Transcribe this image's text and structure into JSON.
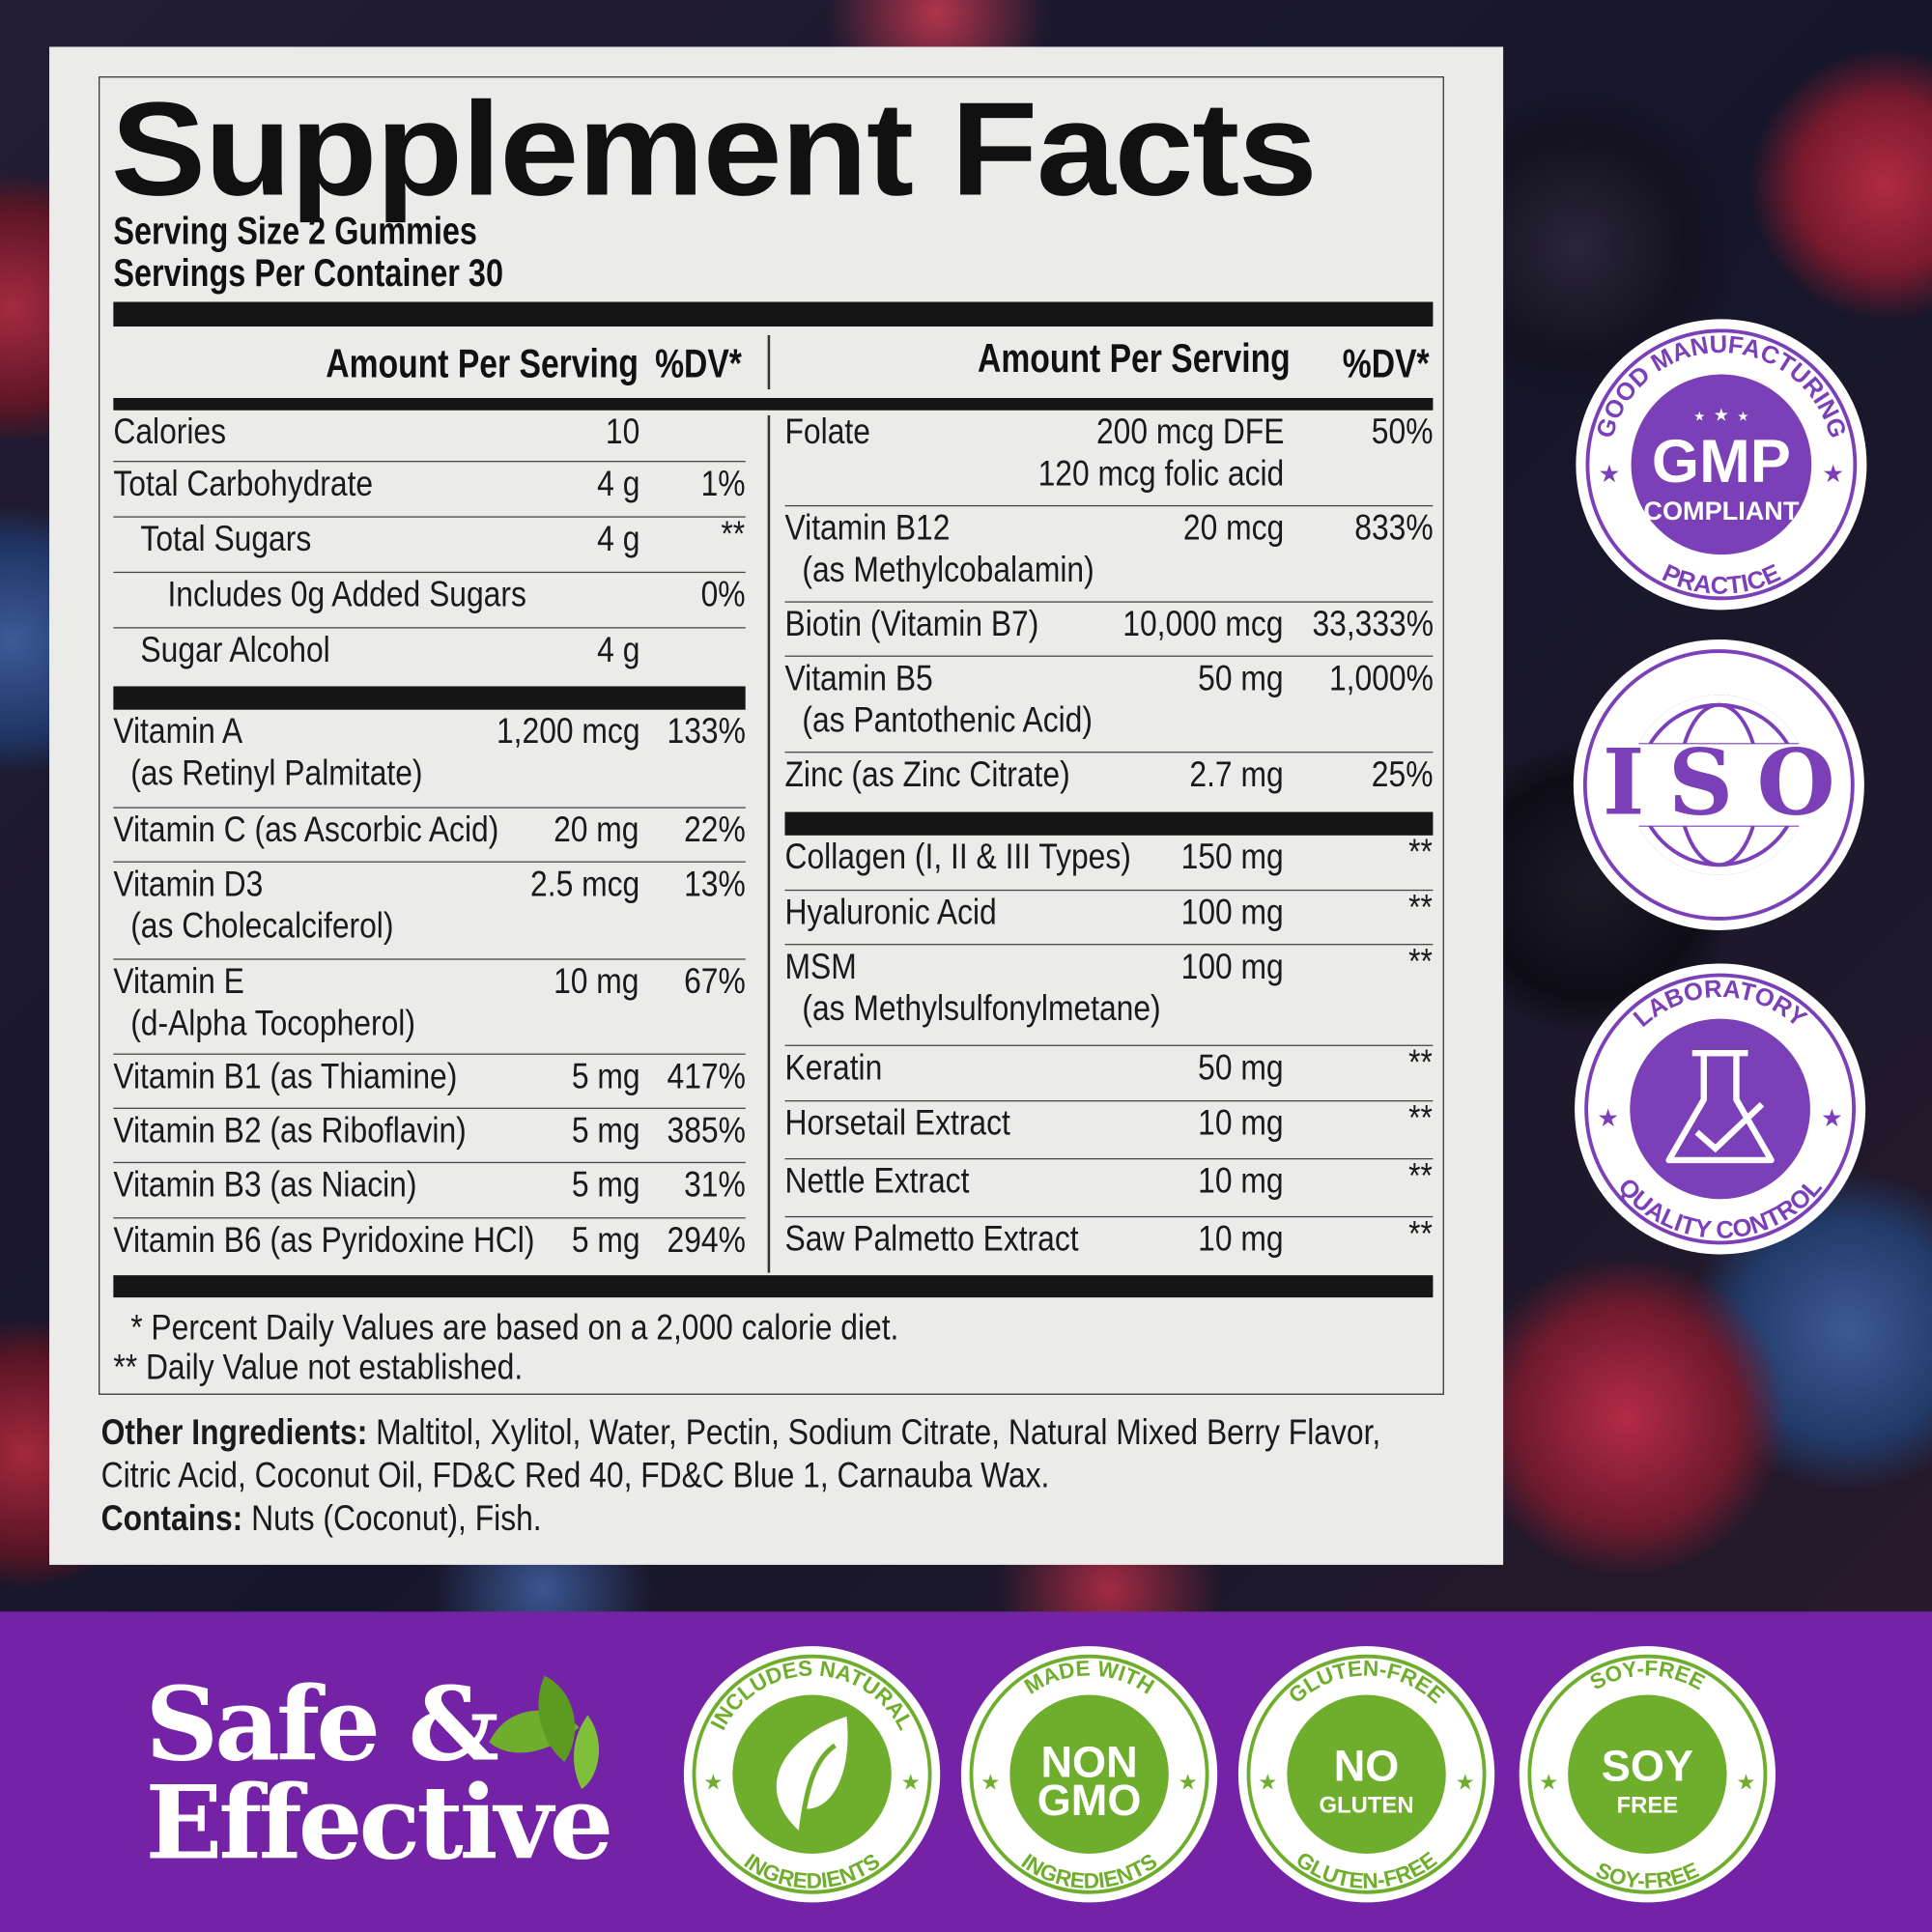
{
  "label": {
    "title": "Supplement Facts",
    "serving_size": "Serving Size 2 Gummies",
    "servings_per_container": "Servings Per Container 30",
    "header_amount": "Amount Per Serving",
    "header_dv": "%DV*",
    "left_rows": [
      {
        "name": "Calories",
        "amount": "10",
        "dv": "",
        "indent": 0
      },
      {
        "name": "Total Carbohydrate",
        "amount": "4 g",
        "dv": "1%",
        "indent": 0
      },
      {
        "name": "Total Sugars",
        "amount": "4 g",
        "dv": "**",
        "indent": 1
      },
      {
        "name": "Includes 0g Added Sugars",
        "amount": "",
        "dv": "0%",
        "indent": 2
      },
      {
        "name": "Sugar Alcohol",
        "amount": "4 g",
        "dv": "",
        "indent": 1
      },
      {
        "name": "Vitamin A",
        "sub": "(as Retinyl Palmitate)",
        "amount": "1,200 mcg",
        "dv": "133%"
      },
      {
        "name": "Vitamin C (as Ascorbic Acid)",
        "amount": "20 mg",
        "dv": "22%"
      },
      {
        "name": "Vitamin D3",
        "sub": "(as Cholecalciferol)",
        "amount": "2.5 mcg",
        "dv": "13%"
      },
      {
        "name": "Vitamin E",
        "sub": "(d-Alpha Tocopherol)",
        "amount": "10 mg",
        "dv": "67%"
      },
      {
        "name": "Vitamin B1 (as Thiamine)",
        "amount": "5 mg",
        "dv": "417%"
      },
      {
        "name": "Vitamin B2 (as Riboflavin)",
        "amount": "5 mg",
        "dv": "385%"
      },
      {
        "name": "Vitamin B3 (as Niacin)",
        "amount": "5 mg",
        "dv": "31%"
      },
      {
        "name": "Vitamin B6  (as Pyridoxine HCl)",
        "amount": "5 mg",
        "dv": "294%"
      }
    ],
    "right_rows": [
      {
        "name": "Folate",
        "amount": "200 mcg DFE",
        "amount2": "120 mcg folic acid",
        "dv": "50%"
      },
      {
        "name": "Vitamin B12",
        "sub": "(as Methylcobalamin)",
        "amount": "20 mcg",
        "dv": "833%"
      },
      {
        "name": "Biotin (Vitamin B7)",
        "amount": "10,000 mcg",
        "dv": "33,333%"
      },
      {
        "name": "Vitamin B5",
        "sub": "(as Pantothenic Acid)",
        "amount": "50 mg",
        "dv": "1,000%"
      },
      {
        "name": "Zinc (as Zinc Citrate)",
        "amount": "2.7 mg",
        "dv": "25%"
      },
      {
        "name": "Collagen (I, II & III Types)",
        "amount": "150 mg",
        "dv": "**"
      },
      {
        "name": "Hyaluronic Acid",
        "amount": "100 mg",
        "dv": "**"
      },
      {
        "name": "MSM",
        "sub": "(as Methylsulfonylmetane)",
        "amount": "100 mg",
        "dv": "**"
      },
      {
        "name": "Keratin",
        "amount": "50 mg",
        "dv": "**"
      },
      {
        "name": "Horsetail Extract",
        "amount": "10 mg",
        "dv": "**"
      },
      {
        "name": "Nettle Extract",
        "amount": "10 mg",
        "dv": "**"
      },
      {
        "name": "Saw Palmetto Extract",
        "amount": "10 mg",
        "dv": "**"
      }
    ],
    "footnote_1": "*  Percent Daily Values are based on a 2,000 calorie diet.",
    "footnote_2": "**  Daily Value not established.",
    "other_ingredients_label": "Other Ingredients:",
    "other_ingredients_1": " Maltitol, Xylitol, Water, Pectin, Sodium Citrate, Natural Mixed Berry Flavor,",
    "other_ingredients_2": "Citric Acid, Coconut Oil, FD&C Red 40, FD&C Blue 1, Carnauba Wax.",
    "contains_label": "Contains:",
    "contains": " Nuts (Coconut), Fish."
  },
  "tagline": {
    "line1": "Safe &",
    "line2": "Effective",
    "icon": "leaves-icon"
  },
  "colors": {
    "purple_band": "#7523a6",
    "badge_purple": "#7b3fb8",
    "badge_green": "#6fae2d"
  },
  "side_badges": [
    {
      "name": "gmp-badge",
      "top": "GOOD MANUFACTURING",
      "bottom": "PRACTICE",
      "center": [
        "GMP",
        "COMPLIANT"
      ],
      "icon": "stars-icon"
    },
    {
      "name": "iso-badge",
      "top": "",
      "bottom": "",
      "center": [
        "ISO"
      ],
      "icon": "globe-icon"
    },
    {
      "name": "lab-badge",
      "top": "LABORATORY",
      "bottom": "QUALITY CONTROL",
      "center": [],
      "icon": "flask-check-icon"
    }
  ],
  "bottom_badges": [
    {
      "name": "natural-ingredients-badge",
      "top": "INCLUDES NATURAL",
      "bottom": "INGREDIENTS",
      "center": [],
      "icon": "leaf-icon"
    },
    {
      "name": "non-gmo-badge",
      "top": "MADE WITH",
      "bottom": "INGREDIENTS",
      "center": [
        "NON",
        "GMO"
      ]
    },
    {
      "name": "gluten-free-badge",
      "top": "GLUTEN-FREE",
      "bottom": "GLUTEN-FREE",
      "center": [
        "NO",
        "GLUTEN"
      ]
    },
    {
      "name": "soy-free-badge",
      "top": "SOY-FREE",
      "bottom": "SOY-FREE",
      "center": [
        "SOY",
        "FREE"
      ]
    }
  ]
}
